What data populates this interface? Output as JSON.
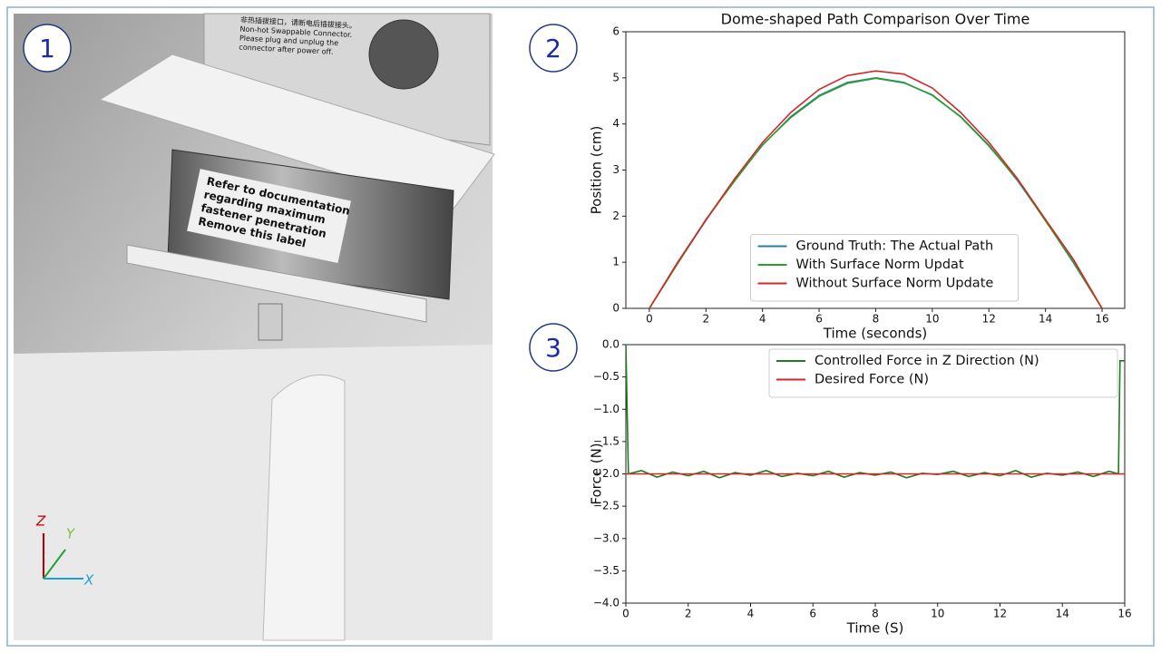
{
  "panels": [
    "1",
    "2",
    "3"
  ],
  "photo": {
    "connector_label": [
      "非热插拔接口，请断电后插拔接头。",
      "Non-hot Swappable Connector.",
      "Please plug and unplug the",
      "connector after power off."
    ],
    "sensor_label": [
      "Refer to documentation",
      "regarding maximum",
      "fastener penetration",
      "Remove this label"
    ],
    "axes": {
      "z": "Z",
      "y": "Y",
      "x": "X"
    }
  },
  "chart_data": [
    {
      "type": "line",
      "title": "Dome-shaped Path Comparison Over Time",
      "x_label": "Time (seconds)",
      "y_label": "Position (cm)",
      "x": [
        0,
        1,
        2,
        3,
        4,
        5,
        6,
        7,
        8,
        9,
        10,
        11,
        12,
        13,
        14,
        15,
        16
      ],
      "series": [
        {
          "name": "Ground Truth: The Actual Path",
          "color": "#2a7f9e",
          "values": [
            0,
            0.98,
            1.91,
            2.78,
            3.54,
            4.16,
            4.62,
            4.9,
            5.0,
            4.9,
            4.62,
            4.16,
            3.54,
            2.78,
            1.91,
            0.98,
            0
          ]
        },
        {
          "name": "With Surface Norm Updat",
          "color": "#2ca02c",
          "values": [
            0,
            0.97,
            1.93,
            2.75,
            3.55,
            4.14,
            4.6,
            4.88,
            4.99,
            4.89,
            4.63,
            4.15,
            3.52,
            2.8,
            1.9,
            1.0,
            0
          ]
        },
        {
          "name": "Without Surface Norm Update",
          "color": "#d62728",
          "values": [
            0,
            1.0,
            1.92,
            2.8,
            3.6,
            4.25,
            4.75,
            5.05,
            5.15,
            5.08,
            4.78,
            4.25,
            3.6,
            2.82,
            1.93,
            1.05,
            0
          ]
        }
      ],
      "xlim": [
        -0.83,
        16.8
      ],
      "ylim": [
        0,
        6
      ],
      "xticks": [
        0,
        2,
        4,
        6,
        8,
        10,
        12,
        14,
        16
      ],
      "yticks": [
        0,
        1,
        2,
        3,
        4,
        5,
        6
      ],
      "legend": "lower center"
    },
    {
      "type": "line",
      "x_label": "Time (S)",
      "y_label": "Force (N)",
      "series": [
        {
          "name": "Controlled Force in Z Direction (N)",
          "color": "#1e7d1e",
          "x": [
            0,
            0.08,
            0.5,
            1,
            1.5,
            2,
            2.5,
            3,
            3.5,
            4,
            4.5,
            5,
            5.5,
            6,
            6.5,
            7,
            7.5,
            8,
            8.5,
            9,
            9.5,
            10,
            10.5,
            11,
            11.5,
            12,
            12.5,
            13,
            13.5,
            14,
            14.5,
            15,
            15.5,
            15.8,
            15.85,
            16
          ],
          "values": [
            0,
            -2.0,
            -1.95,
            -2.05,
            -1.97,
            -2.03,
            -1.96,
            -2.06,
            -1.98,
            -2.02,
            -1.95,
            -2.04,
            -1.99,
            -2.03,
            -1.96,
            -2.05,
            -1.98,
            -2.02,
            -1.97,
            -2.06,
            -1.99,
            -2.01,
            -1.96,
            -2.04,
            -1.98,
            -2.03,
            -1.95,
            -2.05,
            -1.99,
            -2.02,
            -1.97,
            -2.04,
            -1.96,
            -2.0,
            -0.25,
            -0.25
          ]
        },
        {
          "name": "Desired Force (N)",
          "color": "#d62728",
          "x": [
            0,
            16
          ],
          "values": [
            -2,
            -2
          ]
        }
      ],
      "xlim": [
        0,
        16
      ],
      "ylim": [
        -4,
        0
      ],
      "xticks": [
        0,
        2,
        4,
        6,
        8,
        10,
        12,
        14,
        16
      ],
      "yticks": [
        {
          "value": -4,
          "label": "−4.0"
        },
        {
          "value": -3.5,
          "label": "−3.5"
        },
        {
          "value": -3,
          "label": "−3.0"
        },
        {
          "value": -2.5,
          "label": "−2.5"
        },
        {
          "value": -2,
          "label": "−2.0"
        },
        {
          "value": -1.5,
          "label": "−1.5"
        },
        {
          "value": -1,
          "label": "−1.0"
        },
        {
          "value": -0.5,
          "label": "−0.5"
        },
        {
          "value": 0,
          "label": "0.0"
        }
      ],
      "legend": "upper right"
    }
  ]
}
